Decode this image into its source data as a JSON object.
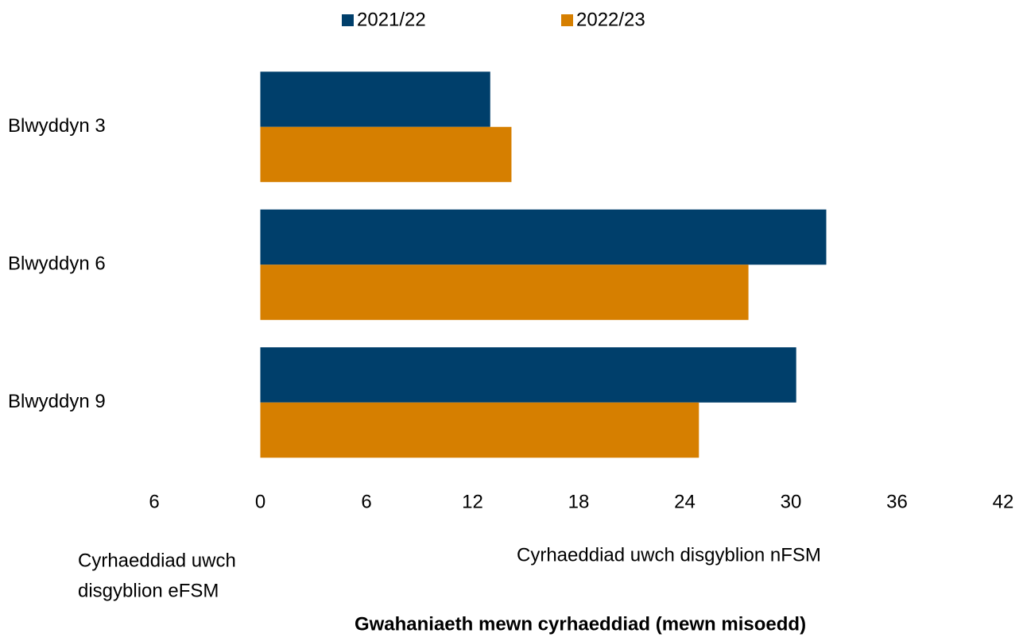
{
  "chart_data": {
    "type": "barh",
    "categories": [
      "Blwyddyn 3",
      "Blwyddyn 6",
      "Blwyddyn 9"
    ],
    "series": [
      {
        "name": "2021/22",
        "color": "#003f6b",
        "values": [
          13.0,
          32.0,
          30.3
        ]
      },
      {
        "name": "2022/23",
        "color": "#d67f00",
        "values": [
          14.2,
          27.6,
          24.8
        ]
      }
    ],
    "xlim": [
      -6,
      42
    ],
    "xticks": [
      {
        "value": -6,
        "label": "6"
      },
      0,
      6,
      12,
      18,
      24,
      30,
      36,
      42
    ],
    "left_note": [
      "Cyrhaeddiad uwch",
      "disgyblion eFSM"
    ],
    "right_note": "Cyrhaeddiad uwch disgyblion nFSM",
    "x_label": "Gwahaniaeth mewn cyrhaeddiad (mewn misoedd)",
    "legend": "top",
    "grid": false
  }
}
